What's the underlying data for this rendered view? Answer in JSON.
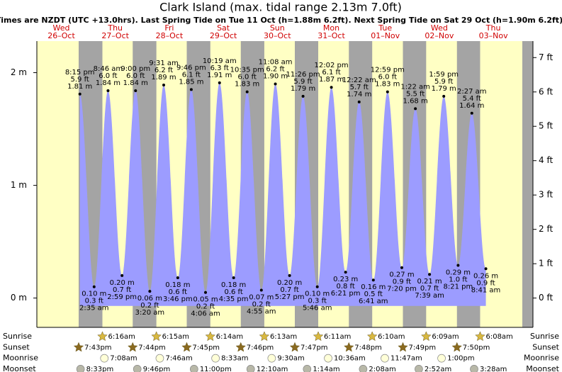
{
  "chart_data": {
    "type": "tide",
    "title": "Clark Island (max. tidal range 2.13m 7.0ft)",
    "subtitle": "Times are NZDT (UTC +13.0hrs). Last Spring Tide on Tue 11 Oct (h=1.88m 6.2ft). Next Spring Tide on Sat 29 Oct (h=1.90m 6.2ft).",
    "weekdays": [
      "Wed",
      "Thu",
      "Fri",
      "Sat",
      "Sun",
      "Mon",
      "Tue",
      "Wed",
      "Thu"
    ],
    "dates": [
      "26–Oct",
      "27–Oct",
      "28–Oct",
      "29–Oct",
      "30–Oct",
      "31–Oct",
      "01–Nov",
      "02–Nov",
      "03–Nov"
    ],
    "tides": {
      "times": [
        "8:15 pm",
        "2:35 am",
        "8:46 am",
        "2:59 pm",
        "9:00 pm",
        "3:20 am",
        "9:31 am",
        "3:46 pm",
        "9:46 pm",
        "4:06 am",
        "10:19 am",
        "4:35 pm",
        "10:35 pm",
        "4:55 am",
        "11:08 am",
        "5:27 pm",
        "11:26 pm",
        "5:46 am",
        "12:02 pm",
        "6:21 pm",
        "12:22 am",
        "6:41 am",
        "12:59 pm",
        "7:20 pm",
        "1:22 am",
        "7:39 am",
        "1:59 pm",
        "8:21 pm",
        "2:27 am",
        "8:41 am"
      ],
      "values": [
        1.81,
        0.1,
        1.84,
        0.2,
        1.84,
        0.06,
        1.89,
        0.18,
        1.85,
        0.05,
        1.91,
        0.18,
        1.83,
        0.07,
        1.9,
        0.2,
        1.79,
        0.1,
        1.87,
        0.23,
        1.74,
        0.16,
        1.83,
        0.27,
        1.68,
        0.21,
        1.79,
        0.29,
        1.64,
        0.26
      ],
      "value_labels": [
        "1.81 m",
        "0.10 m",
        "1.84 m",
        "0.20 m",
        "1.84 m",
        "0.06 m",
        "1.89 m",
        "0.18 m",
        "1.85 m",
        "0.05 m",
        "1.91 m",
        "0.18 m",
        "1.83 m",
        "0.07 m",
        "1.90 m",
        "0.20 m",
        "1.79 m",
        "0.10 m",
        "1.87 m",
        "0.23 m",
        "1.74 m",
        "0.16 m",
        "1.83 m",
        "0.27 m",
        "1.68 m",
        "0.21 m",
        "1.79 m",
        "0.29 m",
        "1.64 m",
        "0.26 m"
      ],
      "ft_labels": [
        "5.9 ft",
        "0.3 ft",
        "6.0 ft",
        "0.7 ft",
        "6.0 ft",
        "0.2 ft",
        "6.2 ft",
        "0.6 ft",
        "6.1 ft",
        "0.2 ft",
        "6.3 ft",
        "0.6 ft",
        "6.0 ft",
        "0.2 ft",
        "6.2 ft",
        "0.7 ft",
        "5.9 ft",
        "0.3 ft",
        "6.1 ft",
        "0.8 ft",
        "5.7 ft",
        "0.5 ft",
        "6.0 ft",
        "0.9 ft",
        "5.5 ft",
        "0.7 ft",
        "5.9 ft",
        "1.0 ft",
        "5.4 ft",
        "0.9 ft"
      ],
      "color": "#9c9cff"
    },
    "ylim": [
      -0.26,
      2.28
    ],
    "yticks": [
      {
        "value": 0,
        "label": "0 m"
      },
      {
        "value": 1,
        "label": "1 m"
      },
      {
        "value": 2,
        "label": "2 m"
      }
    ],
    "y2lim": [
      -0.853,
      7.48
    ],
    "y2ticks": [
      {
        "value": 0,
        "label": "0 ft"
      },
      {
        "value": 1,
        "label": "1 ft"
      },
      {
        "value": 2,
        "label": "2 ft"
      },
      {
        "value": 3,
        "label": "3 ft"
      },
      {
        "value": 4,
        "label": "4 ft"
      },
      {
        "value": 5,
        "label": "5 ft"
      },
      {
        "value": 6,
        "label": "6 ft"
      },
      {
        "value": 7,
        "label": "7 ft"
      }
    ],
    "rows": [
      {
        "name": "Sunrise",
        "color": "#d8b840",
        "times": [
          null,
          "6:16am",
          "6:15am",
          "6:14am",
          "6:13am",
          "6:11am",
          "6:10am",
          "6:09am",
          "6:08am"
        ]
      },
      {
        "name": "Sunset",
        "color": "#8a6a20",
        "times": [
          "7:43pm",
          "7:44pm",
          "7:45pm",
          "7:46pm",
          "7:47pm",
          "7:48pm",
          "7:49pm",
          "7:50pm",
          null
        ]
      },
      {
        "name": "Moonrise",
        "color": "#ffffd8",
        "times": [
          null,
          "7:08am",
          "7:46am",
          "8:33am",
          "9:30am",
          "10:36am",
          "11:47am",
          "1:00pm",
          null
        ]
      },
      {
        "name": "Moonset",
        "color": "#b8b8a8",
        "times": [
          "8:33pm",
          "9:46pm",
          "11:00pm",
          null,
          "12:10am",
          "1:14am",
          "2:08am",
          "2:52am",
          "3:28am"
        ]
      }
    ]
  }
}
